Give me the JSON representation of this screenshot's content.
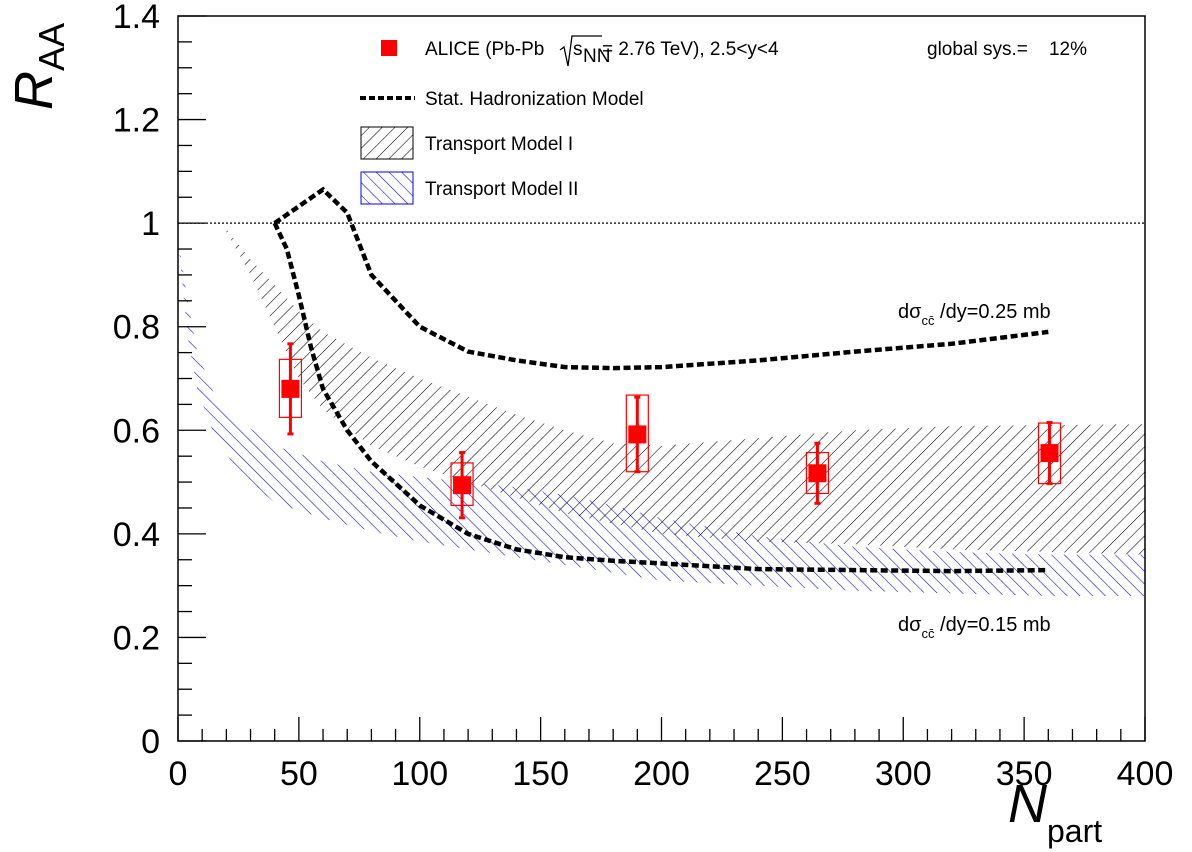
{
  "chart_data": {
    "type": "scatter",
    "xlabel": "N",
    "xlabel_sub": "part",
    "ylabel": "R",
    "ylabel_sub": "AA",
    "xlim": [
      0,
      400
    ],
    "ylim": [
      0,
      1.4
    ],
    "xticks": [
      0,
      50,
      100,
      150,
      200,
      250,
      300,
      350,
      400
    ],
    "xtick_labels": [
      "0",
      "50",
      "100",
      "150",
      "200",
      "250",
      "300",
      "350",
      "400"
    ],
    "yticks": [
      0,
      0.2,
      0.4,
      0.6,
      0.8,
      1,
      1.2,
      1.4
    ],
    "ytick_labels": [
      "0",
      "0.2",
      "0.4",
      "0.6",
      "0.8",
      "1",
      "1.2",
      "1.4"
    ],
    "reference_line": 1.0,
    "legend": {
      "placement": "top-right",
      "entries": [
        {
          "label_pre": "ALICE (Pb-Pb ",
          "label_sqrt": "s",
          "label_sqrt_sub": "NN",
          "label_post": " = 2.76 TeV), 2.5<y<4",
          "extra": "global sys.=    12%",
          "marker": "square",
          "color": "#ff0000"
        },
        {
          "label": "Stat. Hadronization Model",
          "marker": "dashed-line",
          "color": "#000000"
        },
        {
          "label": "Transport Model I",
          "marker": "hatch-forward",
          "color": "#000000"
        },
        {
          "label": "Transport Model II",
          "marker": "hatch-back",
          "color": "#0000ff"
        }
      ]
    },
    "annotations": {
      "upper_pre": "dσ",
      "upper_sub": "cc̄",
      "upper_post": " /dy=0.25 mb",
      "lower_pre": "dσ",
      "lower_sub": "cc̄",
      "lower_post": " /dy=0.15 mb"
    },
    "series": [
      {
        "name": "ALICE (Pb-Pb √sNN = 2.76 TeV), 2.5<y<4",
        "type": "points",
        "color": "#ff0000",
        "points": [
          {
            "x": 46.5,
            "y": 0.68,
            "stat": 0.087,
            "sys_lo": 0.625,
            "sys_hi": 0.737
          },
          {
            "x": 117.5,
            "y": 0.494,
            "stat": 0.063,
            "sys_lo": 0.455,
            "sys_hi": 0.537
          },
          {
            "x": 190,
            "y": 0.592,
            "stat": 0.072,
            "sys_lo": 0.52,
            "sys_hi": 0.668
          },
          {
            "x": 264.5,
            "y": 0.517,
            "stat": 0.058,
            "sys_lo": 0.478,
            "sys_hi": 0.557
          },
          {
            "x": 360.5,
            "y": 0.556,
            "stat": 0.059,
            "sys_lo": 0.497,
            "sys_hi": 0.614
          }
        ]
      },
      {
        "name": "Stat. Hadronization Model",
        "type": "band-outline",
        "color": "#000000",
        "upper": [
          [
            40,
            1.0
          ],
          [
            60,
            1.065
          ],
          [
            70,
            1.02
          ],
          [
            80,
            0.9
          ],
          [
            100,
            0.8
          ],
          [
            120,
            0.752
          ],
          [
            140,
            0.735
          ],
          [
            160,
            0.722
          ],
          [
            180,
            0.72
          ],
          [
            200,
            0.722
          ],
          [
            240,
            0.735
          ],
          [
            280,
            0.752
          ],
          [
            320,
            0.767
          ],
          [
            360,
            0.79
          ]
        ],
        "lower": [
          [
            40,
            1.0
          ],
          [
            45,
            0.95
          ],
          [
            50,
            0.86
          ],
          [
            55,
            0.76
          ],
          [
            60,
            0.68
          ],
          [
            70,
            0.6
          ],
          [
            80,
            0.54
          ],
          [
            100,
            0.455
          ],
          [
            120,
            0.4
          ],
          [
            140,
            0.37
          ],
          [
            160,
            0.355
          ],
          [
            180,
            0.348
          ],
          [
            200,
            0.343
          ],
          [
            240,
            0.332
          ],
          [
            280,
            0.33
          ],
          [
            320,
            0.328
          ],
          [
            360,
            0.33
          ]
        ]
      },
      {
        "name": "Transport Model I",
        "type": "band",
        "hatch": "forward",
        "color": "#000000",
        "upper": [
          [
            18,
            1.0
          ],
          [
            30,
            0.93
          ],
          [
            40,
            0.88
          ],
          [
            50,
            0.83
          ],
          [
            60,
            0.79
          ],
          [
            80,
            0.74
          ],
          [
            100,
            0.7
          ],
          [
            120,
            0.665
          ],
          [
            140,
            0.63
          ],
          [
            160,
            0.6
          ],
          [
            180,
            0.575
          ],
          [
            200,
            0.57
          ],
          [
            240,
            0.585
          ],
          [
            280,
            0.6
          ],
          [
            320,
            0.608
          ],
          [
            360,
            0.61
          ],
          [
            400,
            0.612
          ]
        ],
        "lower": [
          [
            18,
            1.0
          ],
          [
            30,
            0.9
          ],
          [
            40,
            0.8
          ],
          [
            50,
            0.7
          ],
          [
            60,
            0.64
          ],
          [
            80,
            0.57
          ],
          [
            100,
            0.53
          ],
          [
            120,
            0.5
          ],
          [
            140,
            0.47
          ],
          [
            160,
            0.44
          ],
          [
            180,
            0.42
          ],
          [
            200,
            0.4
          ],
          [
            240,
            0.385
          ],
          [
            280,
            0.38
          ],
          [
            320,
            0.37
          ],
          [
            360,
            0.365
          ],
          [
            400,
            0.36
          ]
        ]
      },
      {
        "name": "Transport Model II",
        "type": "band",
        "hatch": "back",
        "color": "#0000ff",
        "upper": [
          [
            0,
            0.97
          ],
          [
            4,
            0.85
          ],
          [
            8,
            0.75
          ],
          [
            15,
            0.67
          ],
          [
            25,
            0.62
          ],
          [
            40,
            0.57
          ],
          [
            60,
            0.54
          ],
          [
            80,
            0.52
          ],
          [
            100,
            0.51
          ],
          [
            120,
            0.5
          ],
          [
            140,
            0.49
          ],
          [
            160,
            0.475
          ],
          [
            180,
            0.455
          ],
          [
            200,
            0.43
          ],
          [
            240,
            0.395
          ],
          [
            280,
            0.375
          ],
          [
            320,
            0.365
          ],
          [
            360,
            0.36
          ],
          [
            400,
            0.36
          ]
        ],
        "lower": [
          [
            0,
            0.97
          ],
          [
            4,
            0.78
          ],
          [
            8,
            0.68
          ],
          [
            15,
            0.59
          ],
          [
            25,
            0.52
          ],
          [
            40,
            0.46
          ],
          [
            60,
            0.43
          ],
          [
            80,
            0.405
          ],
          [
            100,
            0.385
          ],
          [
            120,
            0.37
          ],
          [
            140,
            0.355
          ],
          [
            160,
            0.34
          ],
          [
            180,
            0.325
          ],
          [
            200,
            0.31
          ],
          [
            240,
            0.3
          ],
          [
            280,
            0.29
          ],
          [
            320,
            0.285
          ],
          [
            360,
            0.28
          ],
          [
            400,
            0.28
          ]
        ]
      }
    ]
  }
}
